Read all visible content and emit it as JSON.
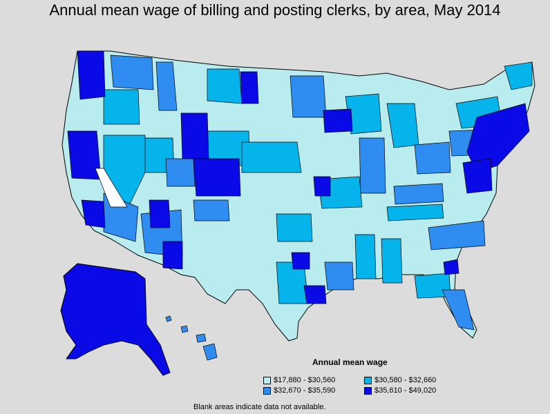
{
  "title": "Annual mean wage of billing and posting clerks, by area, May 2014",
  "legend": {
    "title": "Annual mean wage",
    "items": [
      {
        "label": "$17,880 - $30,560",
        "color": "#b8ecee"
      },
      {
        "label": "$30,580 - $32,660",
        "color": "#06b4ec"
      },
      {
        "label": "$32,670 - $35,590",
        "color": "#2f8cf0"
      },
      {
        "label": "$35,610 - $49,020",
        "color": "#0a0ae6"
      }
    ]
  },
  "footnote": "Blank areas indicate data not available.",
  "colors": {
    "background": "#dcdcdc",
    "border": "#000000",
    "no_data": "#ffffff"
  }
}
